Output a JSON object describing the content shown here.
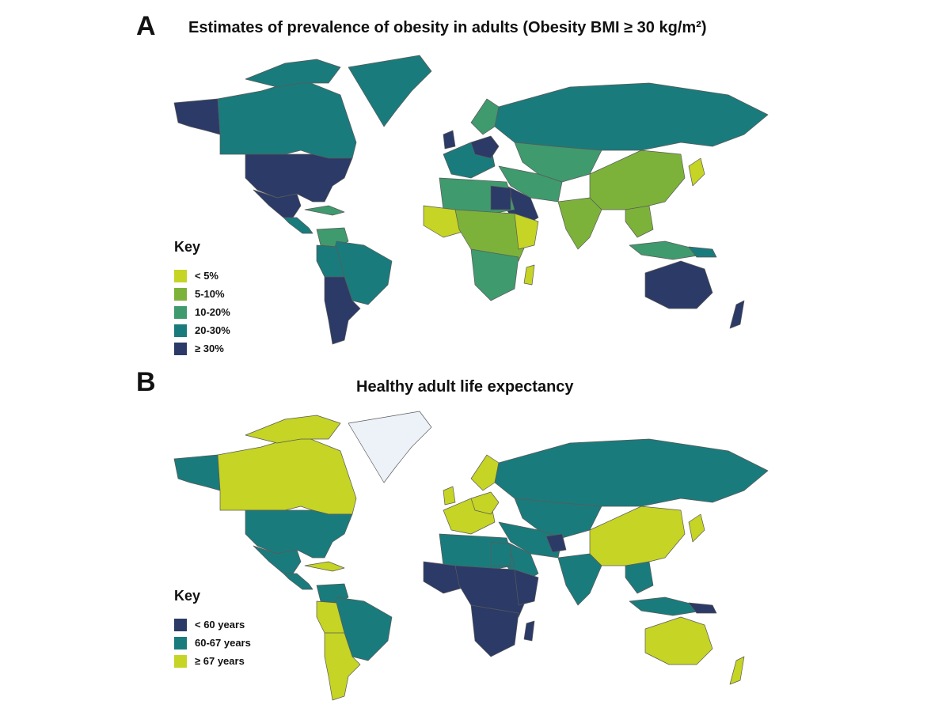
{
  "panel_a": {
    "letter": "A",
    "title": "Estimates of prevalence of obesity in adults (Obesity BMI ≥ 30 kg/m²)",
    "legend_title": "Key",
    "legend": [
      {
        "label": " < 5%",
        "color": "#c5d425"
      },
      {
        "label": "5-10%",
        "color": "#7cb23a"
      },
      {
        "label": "10-20%",
        "color": "#3f9a6e"
      },
      {
        "label": "20-30%",
        "color": "#1a7b7c"
      },
      {
        "label": "≥ 30%",
        "color": "#2b3a66"
      }
    ]
  },
  "panel_b": {
    "letter": "B",
    "title": "Healthy adult life expectancy",
    "legend_title": "Key",
    "legend": [
      {
        "label": " < 60 years",
        "color": "#2b3a66"
      },
      {
        "label": "60-67 years",
        "color": "#1a7b7c"
      },
      {
        "label": "≥ 67 years",
        "color": "#c5d425"
      }
    ],
    "no_data_color": "#edf1f8"
  }
}
